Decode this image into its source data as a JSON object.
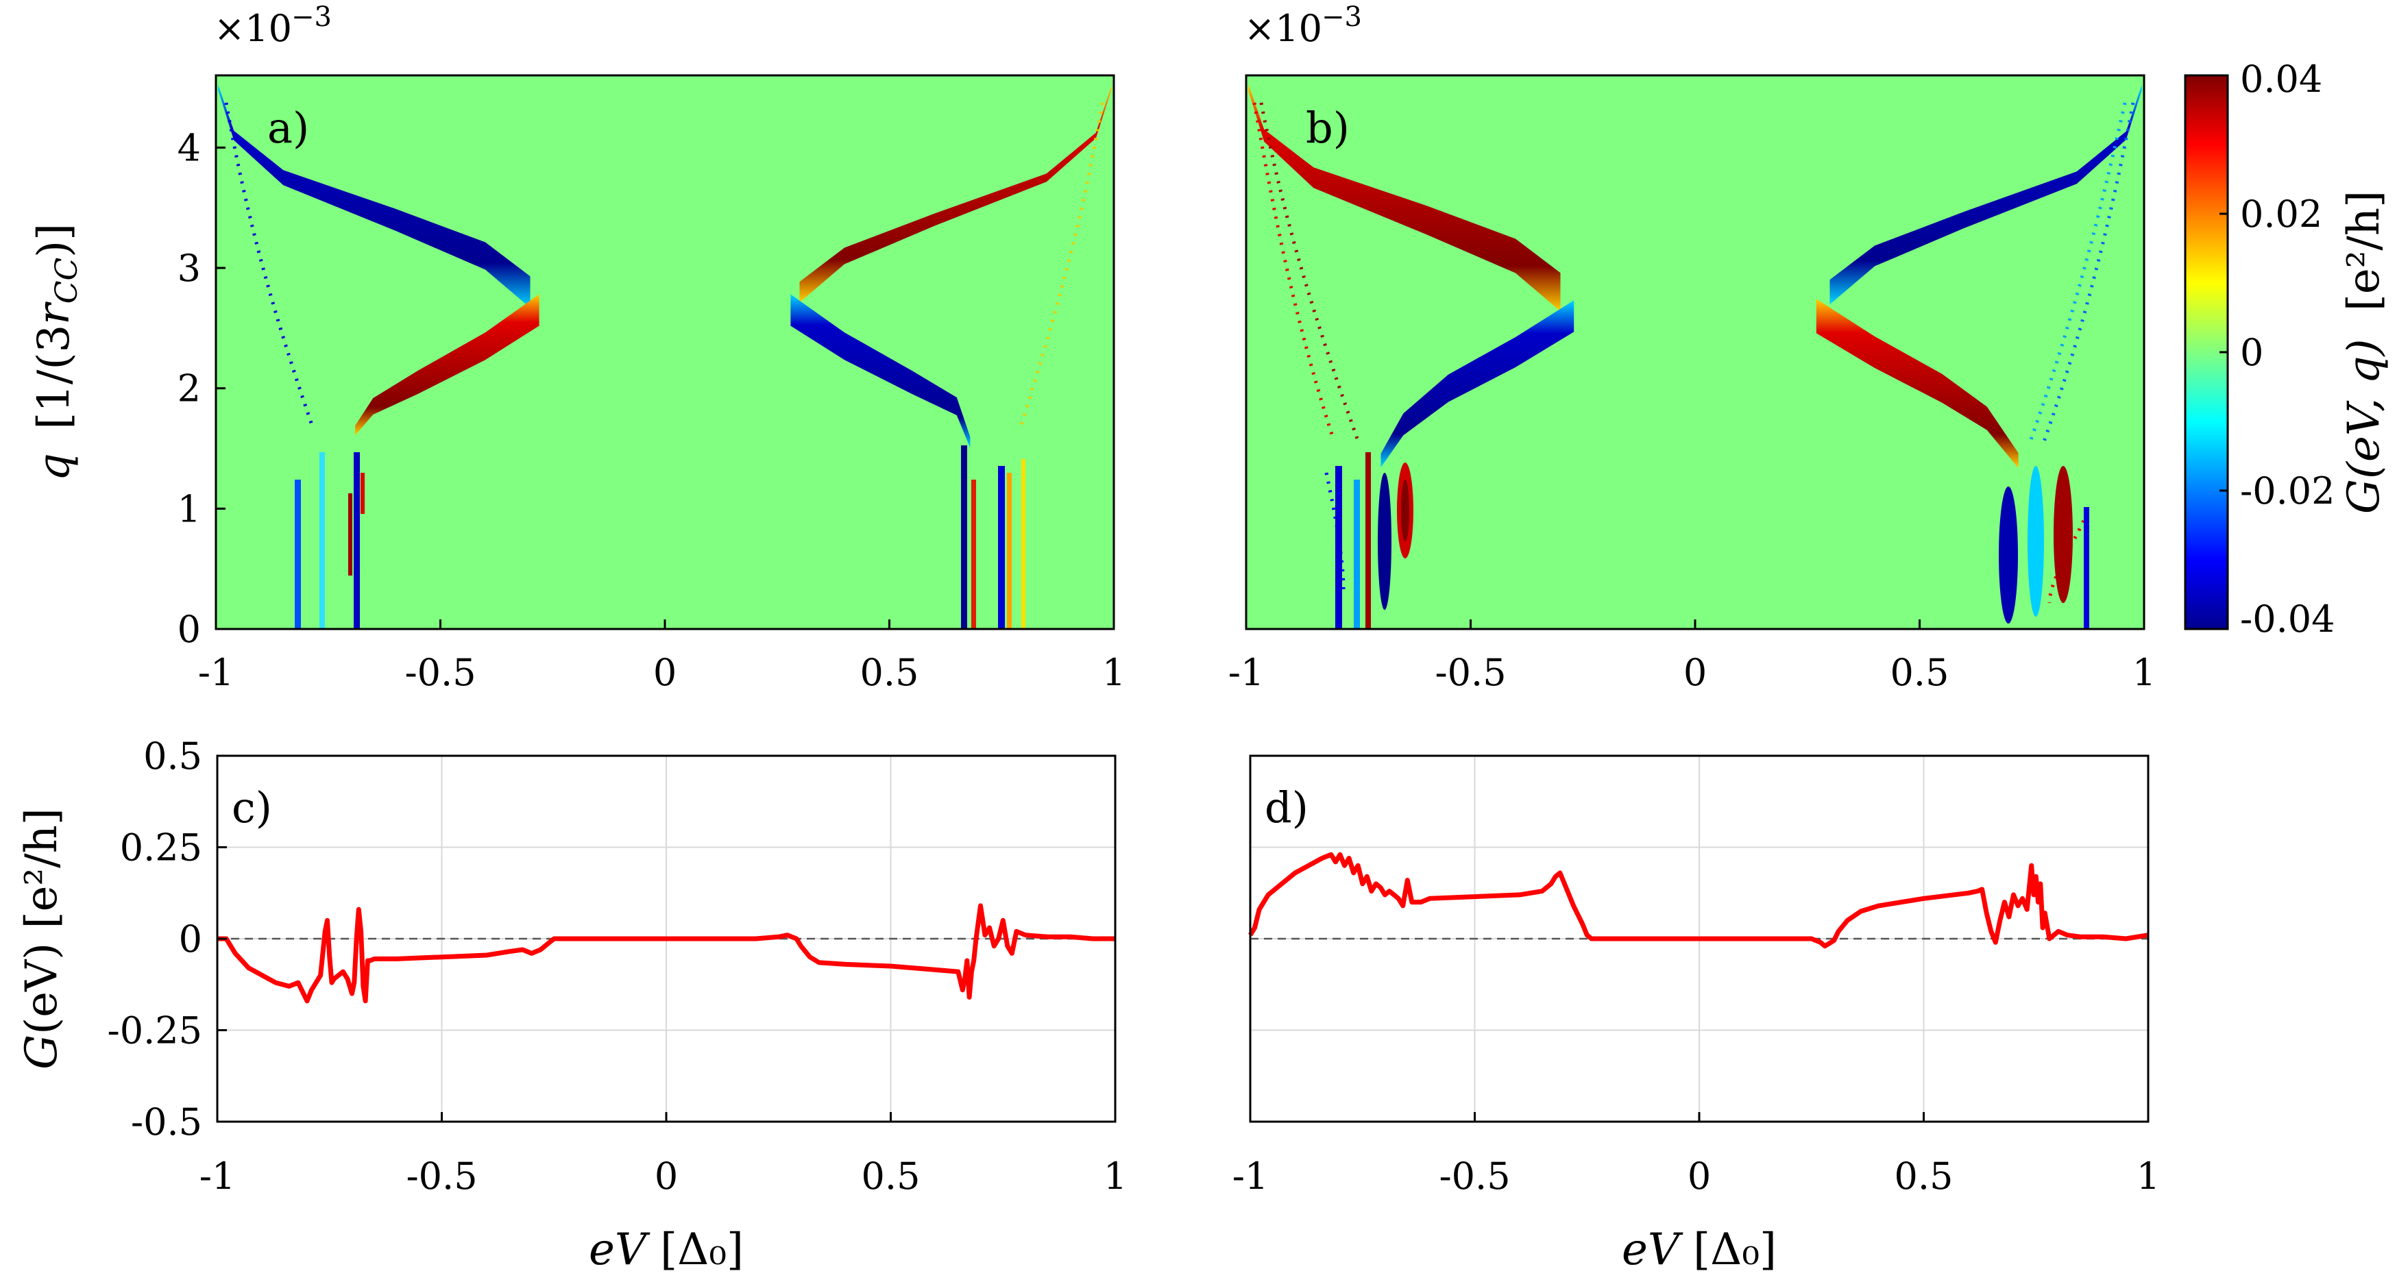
{
  "chart_data": [
    {
      "id": "a",
      "type": "heatmap",
      "panel_label": "a)",
      "xlim": [
        -1,
        1
      ],
      "ylim": [
        0,
        0.0046
      ],
      "x_ticks": [
        -1,
        -0.5,
        0,
        0.5,
        1
      ],
      "x_tick_labels": [
        "-1",
        "-0.5",
        "0",
        "0.5",
        "1"
      ],
      "y_ticks": [
        0,
        1,
        2,
        3,
        4
      ],
      "y_tick_labels": [
        "0",
        "1",
        "2",
        "3",
        "4"
      ],
      "y_multiplier": "×10",
      "y_exponent": "−3",
      "ylabel_main": "q",
      "ylabel_rest": "[1/(3",
      "ylabel_r": "r",
      "ylabel_sub": "CC",
      "ylabel_close": ")]",
      "background_value": 0,
      "features": [
        {
          "name": "upper-left-branch",
          "sign": "negative",
          "path": [
            [
              -0.995,
              4.5
            ],
            [
              -0.96,
              4.1
            ],
            [
              -0.85,
              3.75
            ],
            [
              -0.6,
              3.4
            ],
            [
              -0.4,
              3.1
            ],
            [
              -0.3,
              2.8
            ]
          ],
          "width": [
            8,
            14,
            22,
            32,
            40,
            46
          ]
        },
        {
          "name": "lower-left-branch",
          "sign": "positive",
          "path": [
            [
              -0.28,
              2.65
            ],
            [
              -0.4,
              2.35
            ],
            [
              -0.55,
              2.05
            ],
            [
              -0.65,
              1.85
            ],
            [
              -0.69,
              1.65
            ]
          ],
          "width": [
            46,
            40,
            34,
            24,
            14
          ]
        },
        {
          "name": "upper-right-branch",
          "sign": "positive",
          "path": [
            [
              0.995,
              4.5
            ],
            [
              0.96,
              4.1
            ],
            [
              0.85,
              3.75
            ],
            [
              0.6,
              3.4
            ],
            [
              0.4,
              3.1
            ],
            [
              0.3,
              2.8
            ]
          ],
          "width": [
            6,
            8,
            12,
            18,
            24,
            30
          ]
        },
        {
          "name": "lower-right-branch",
          "sign": "negative",
          "path": [
            [
              0.28,
              2.65
            ],
            [
              0.4,
              2.35
            ],
            [
              0.55,
              2.05
            ],
            [
              0.65,
              1.85
            ],
            [
              0.68,
              1.55
            ]
          ],
          "width": [
            46,
            40,
            34,
            26,
            16
          ]
        }
      ]
    },
    {
      "id": "b",
      "type": "heatmap",
      "panel_label": "b)",
      "xlim": [
        -1,
        1
      ],
      "ylim": [
        0,
        0.0046
      ],
      "x_ticks": [
        -1,
        -0.5,
        0,
        0.5,
        1
      ],
      "x_tick_labels": [
        "-1",
        "-0.5",
        "0",
        "0.5",
        "1"
      ],
      "y_multiplier": "×10",
      "y_exponent": "−3",
      "colorbar": {
        "min": -0.04,
        "max": 0.04,
        "ticks": [
          0.04,
          0.02,
          0,
          -0.02,
          -0.04
        ],
        "tick_labels": [
          "0.04",
          "0.02",
          "0",
          "-0.02",
          "-0.04"
        ],
        "label_main": "G",
        "label_rest": "(eV, q)",
        "label_unit": "[e²/h]",
        "colormap": "jet"
      },
      "features": [
        {
          "name": "upper-left-branch",
          "sign": "positive",
          "path": [
            [
              -0.995,
              4.5
            ],
            [
              -0.96,
              4.1
            ],
            [
              -0.85,
              3.75
            ],
            [
              -0.6,
              3.4
            ],
            [
              -0.4,
              3.1
            ],
            [
              -0.3,
              2.8
            ]
          ],
          "width": [
            10,
            18,
            30,
            42,
            50,
            56
          ]
        },
        {
          "name": "lower-left-branch",
          "sign": "negative",
          "path": [
            [
              -0.27,
              2.6
            ],
            [
              -0.4,
              2.3
            ],
            [
              -0.55,
              2.0
            ],
            [
              -0.65,
              1.7
            ],
            [
              -0.7,
              1.4
            ]
          ],
          "width": [
            46,
            44,
            40,
            32,
            20
          ]
        },
        {
          "name": "upper-right-branch",
          "sign": "negative",
          "path": [
            [
              0.995,
              4.5
            ],
            [
              0.96,
              4.1
            ],
            [
              0.85,
              3.75
            ],
            [
              0.6,
              3.4
            ],
            [
              0.4,
              3.1
            ],
            [
              0.3,
              2.8
            ]
          ],
          "width": [
            8,
            12,
            18,
            24,
            30,
            36
          ]
        },
        {
          "name": "lower-right-branch",
          "sign": "positive",
          "path": [
            [
              0.27,
              2.6
            ],
            [
              0.4,
              2.3
            ],
            [
              0.55,
              2.0
            ],
            [
              0.65,
              1.75
            ],
            [
              0.72,
              1.4
            ]
          ],
          "width": [
            50,
            46,
            42,
            34,
            22
          ]
        }
      ]
    },
    {
      "id": "c",
      "type": "line",
      "panel_label": "c)",
      "xlim": [
        -1,
        1
      ],
      "ylim": [
        -0.5,
        0.5
      ],
      "grid": true,
      "x_ticks": [
        -1,
        -0.5,
        0,
        0.5,
        1
      ],
      "x_tick_labels": [
        "-1",
        "-0.5",
        "0",
        "0.5",
        "1"
      ],
      "y_ticks": [
        0.5,
        0.25,
        0,
        -0.25,
        -0.5
      ],
      "y_tick_labels": [
        "0.5",
        "0.25",
        "0",
        "-0.25",
        "-0.5"
      ],
      "ylabel_main": "G",
      "ylabel_rest": "(eV) [e²/h]",
      "xlabel_main": "eV",
      "xlabel_rest": "[Δ₀]",
      "reference_line": 0,
      "series": [
        {
          "name": "G(eV)",
          "color": "#ff0000",
          "x": [
            -1,
            -0.98,
            -0.96,
            -0.93,
            -0.9,
            -0.87,
            -0.84,
            -0.82,
            -0.8,
            -0.79,
            -0.78,
            -0.77,
            -0.76,
            -0.755,
            -0.75,
            -0.745,
            -0.74,
            -0.73,
            -0.72,
            -0.71,
            -0.7,
            -0.695,
            -0.69,
            -0.685,
            -0.68,
            -0.675,
            -0.67,
            -0.665,
            -0.66,
            -0.65,
            -0.6,
            -0.5,
            -0.4,
            -0.35,
            -0.32,
            -0.3,
            -0.28,
            -0.26,
            -0.25,
            -0.24,
            -0.2,
            -0.1,
            0,
            0.1,
            0.2,
            0.25,
            0.27,
            0.29,
            0.3,
            0.32,
            0.34,
            0.4,
            0.5,
            0.6,
            0.65,
            0.66,
            0.665,
            0.67,
            0.675,
            0.68,
            0.685,
            0.69,
            0.7,
            0.71,
            0.72,
            0.73,
            0.74,
            0.75,
            0.76,
            0.77,
            0.78,
            0.8,
            0.85,
            0.9,
            0.95,
            1
          ],
          "y": [
            0,
            0,
            -0.04,
            -0.08,
            -0.1,
            -0.12,
            -0.13,
            -0.12,
            -0.17,
            -0.14,
            -0.12,
            -0.1,
            0.02,
            0.05,
            -0.05,
            -0.12,
            -0.11,
            -0.1,
            -0.09,
            -0.11,
            -0.15,
            -0.12,
            0.0,
            0.08,
            0.02,
            -0.13,
            -0.17,
            -0.06,
            -0.06,
            -0.055,
            -0.055,
            -0.05,
            -0.045,
            -0.035,
            -0.03,
            -0.04,
            -0.03,
            -0.01,
            0,
            0,
            0,
            0,
            0,
            0,
            0,
            0.005,
            0.01,
            0.0,
            -0.02,
            -0.05,
            -0.065,
            -0.07,
            -0.075,
            -0.085,
            -0.09,
            -0.14,
            -0.11,
            -0.06,
            -0.16,
            -0.09,
            -0.06,
            0.0,
            0.09,
            0.01,
            0.03,
            -0.02,
            0.0,
            0.05,
            -0.02,
            -0.04,
            0.02,
            0.01,
            0.005,
            0.005,
            0,
            0
          ]
        }
      ]
    },
    {
      "id": "d",
      "type": "line",
      "panel_label": "d)",
      "xlim": [
        -1,
        1
      ],
      "ylim": [
        -0.5,
        0.5
      ],
      "grid": true,
      "x_ticks": [
        -1,
        -0.5,
        0,
        0.5,
        1
      ],
      "x_tick_labels": [
        "-1",
        "-0.5",
        "0",
        "0.5",
        "1"
      ],
      "xlabel_main": "eV",
      "xlabel_rest": "[Δ₀]",
      "reference_line": 0,
      "series": [
        {
          "name": "G(eV)",
          "color": "#ff0000",
          "x": [
            -1,
            -0.99,
            -0.98,
            -0.96,
            -0.93,
            -0.9,
            -0.87,
            -0.84,
            -0.82,
            -0.81,
            -0.8,
            -0.79,
            -0.78,
            -0.77,
            -0.76,
            -0.75,
            -0.74,
            -0.73,
            -0.72,
            -0.71,
            -0.7,
            -0.69,
            -0.68,
            -0.67,
            -0.66,
            -0.65,
            -0.64,
            -0.62,
            -0.6,
            -0.5,
            -0.4,
            -0.35,
            -0.33,
            -0.32,
            -0.31,
            -0.3,
            -0.28,
            -0.26,
            -0.25,
            -0.24,
            -0.2,
            -0.1,
            0,
            0.1,
            0.2,
            0.25,
            0.27,
            0.28,
            0.3,
            0.31,
            0.33,
            0.36,
            0.4,
            0.5,
            0.6,
            0.62,
            0.63,
            0.64,
            0.65,
            0.66,
            0.67,
            0.68,
            0.69,
            0.7,
            0.71,
            0.72,
            0.73,
            0.74,
            0.745,
            0.75,
            0.755,
            0.76,
            0.765,
            0.77,
            0.78,
            0.8,
            0.82,
            0.85,
            0.9,
            0.95,
            1
          ],
          "y": [
            0.01,
            0.03,
            0.08,
            0.12,
            0.15,
            0.18,
            0.2,
            0.22,
            0.23,
            0.21,
            0.23,
            0.2,
            0.22,
            0.18,
            0.2,
            0.15,
            0.17,
            0.13,
            0.15,
            0.14,
            0.12,
            0.13,
            0.12,
            0.11,
            0.09,
            0.16,
            0.1,
            0.1,
            0.11,
            0.115,
            0.12,
            0.13,
            0.15,
            0.17,
            0.18,
            0.15,
            0.09,
            0.04,
            0.01,
            0,
            0,
            0,
            0,
            0,
            0,
            0,
            -0.01,
            -0.02,
            -0.005,
            0.02,
            0.05,
            0.075,
            0.09,
            0.11,
            0.125,
            0.13,
            0.135,
            0.07,
            0.02,
            -0.01,
            0.05,
            0.1,
            0.06,
            0.12,
            0.09,
            0.11,
            0.08,
            0.2,
            0.12,
            0.17,
            0.1,
            0.15,
            0.03,
            0.07,
            0.0,
            0.02,
            0.01,
            0.005,
            0.005,
            0,
            0.01
          ]
        }
      ]
    }
  ]
}
